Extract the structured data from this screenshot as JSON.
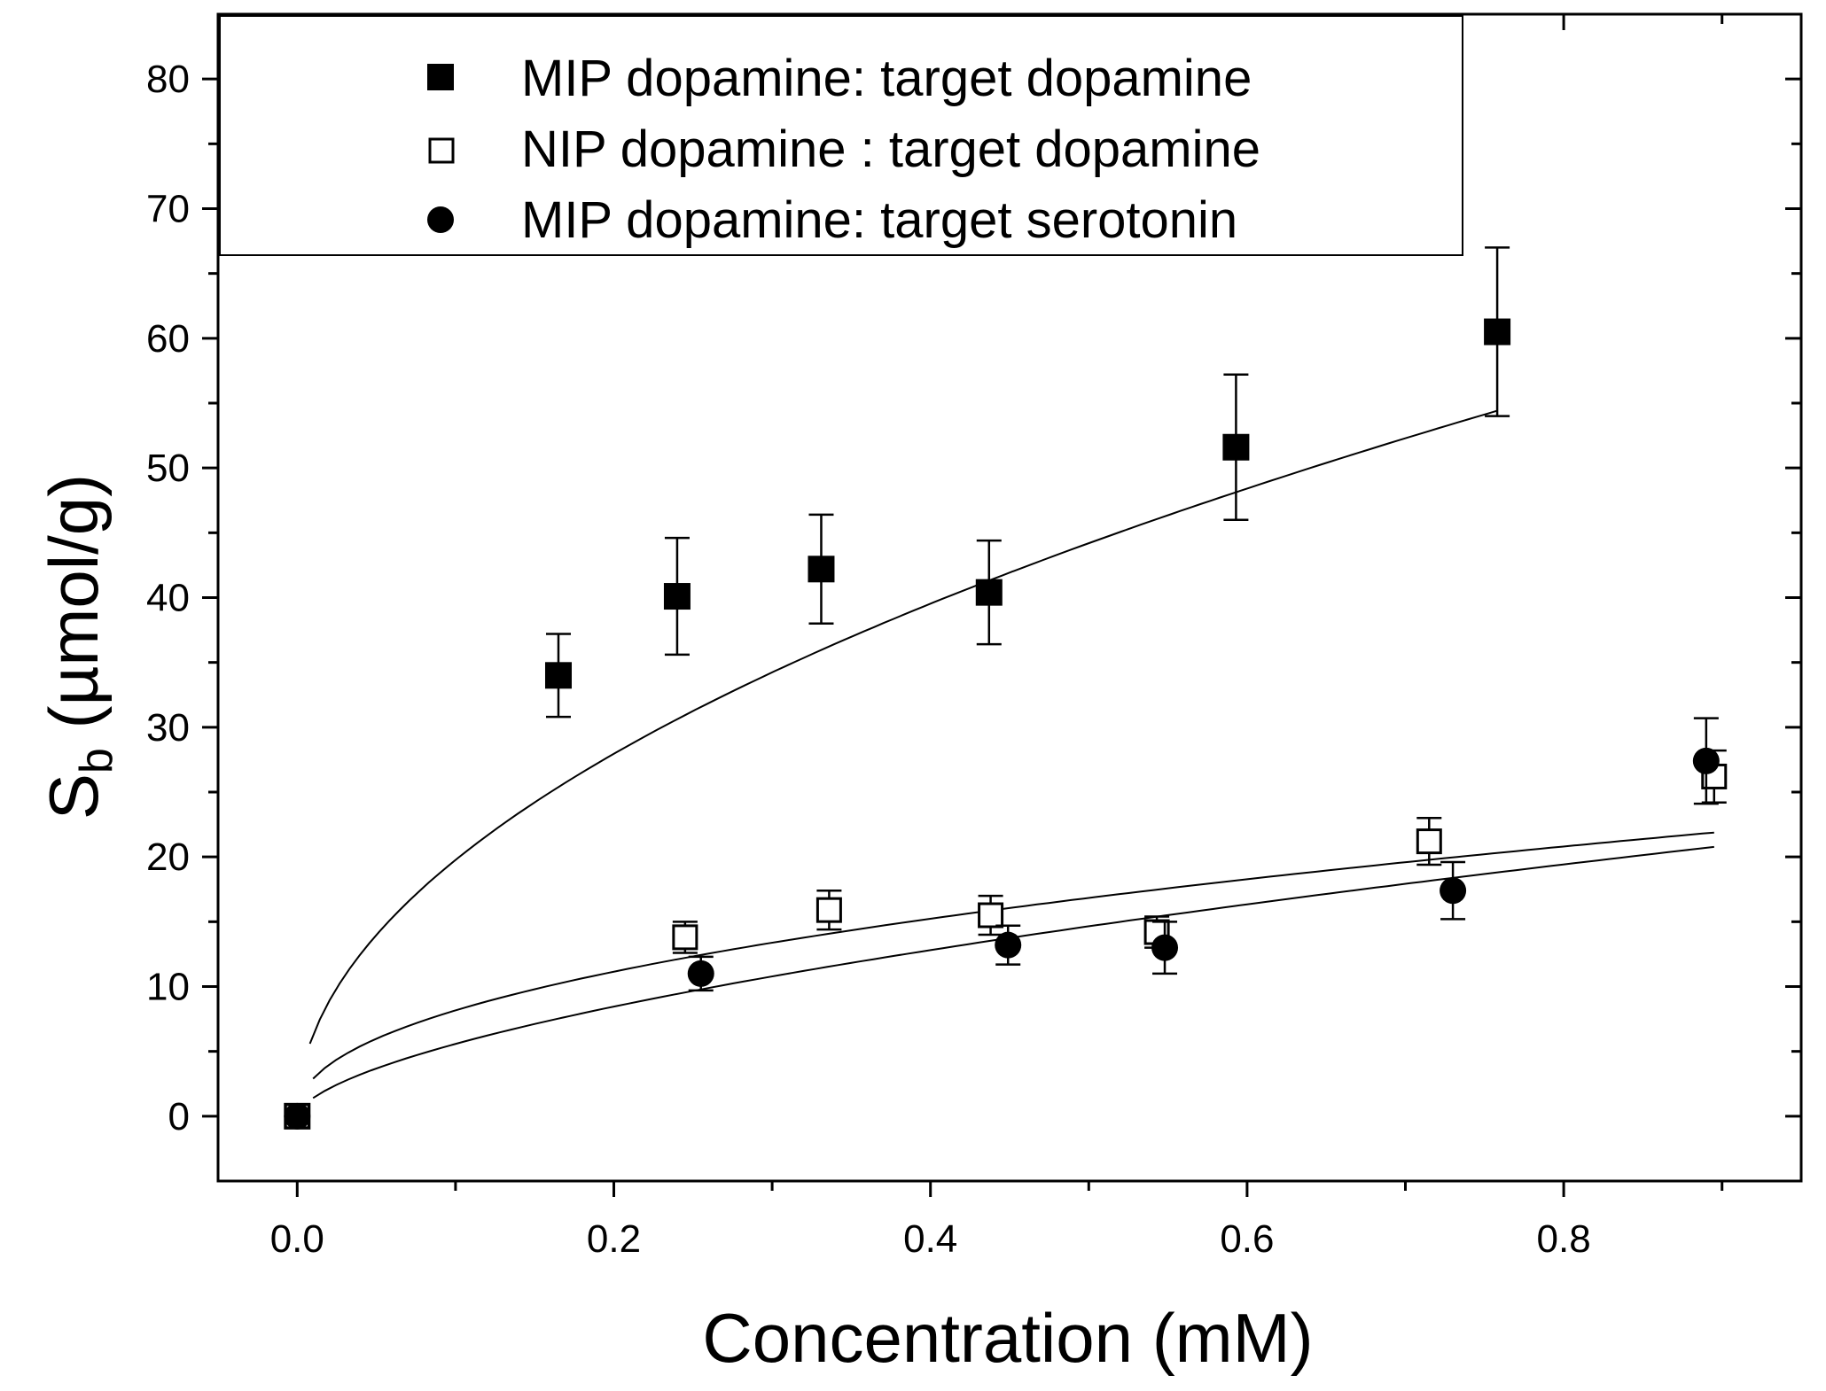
{
  "chart_data": {
    "type": "scatter",
    "title": "",
    "xlabel": "Concentration (mM)",
    "ylabel_main": "S",
    "ylabel_sub": "b",
    "ylabel_unit": " (µmol/g)",
    "xlim": [
      -0.05,
      0.95
    ],
    "ylim": [
      -5,
      85
    ],
    "x_ticks": [
      0.0,
      0.2,
      0.4,
      0.6,
      0.8
    ],
    "x_tick_labels": [
      "0.0",
      "0.2",
      "0.4",
      "0.6",
      "0.8"
    ],
    "x_minor_step": 0.1,
    "y_ticks": [
      0,
      10,
      20,
      30,
      40,
      50,
      60,
      70,
      80
    ],
    "y_tick_labels": [
      "0",
      "10",
      "20",
      "30",
      "40",
      "50",
      "60",
      "70",
      "80"
    ],
    "y_minor_step": 5,
    "grid": false,
    "legend_position": "top-left",
    "series": [
      {
        "name": "MIP dopamine: target dopamine",
        "marker": "filled-square",
        "x": [
          0.0,
          0.165,
          0.24,
          0.331,
          0.437,
          0.593,
          0.758
        ],
        "y": [
          0.0,
          34.0,
          40.1,
          42.2,
          40.4,
          51.6,
          60.5
        ],
        "err": [
          0.0,
          3.2,
          4.5,
          4.2,
          4.0,
          5.6,
          6.5
        ],
        "fit": {
          "a": 62.5,
          "b": 0.5,
          "x_start": 0.008,
          "x_end": 0.758
        }
      },
      {
        "name": "NIP dopamine : target dopamine",
        "marker": "open-square",
        "x": [
          0.0,
          0.245,
          0.336,
          0.438,
          0.543,
          0.715,
          0.895
        ],
        "y": [
          0.0,
          13.8,
          15.9,
          15.5,
          14.2,
          21.2,
          26.2
        ],
        "err": [
          0.0,
          1.2,
          1.5,
          1.5,
          1.2,
          1.8,
          2.0
        ],
        "fit": {
          "a": 23.0,
          "b": 0.45,
          "x_start": 0.01,
          "x_end": 0.895
        }
      },
      {
        "name": "MIP dopamine: target serotonin",
        "marker": "filled-circle",
        "x": [
          0.0,
          0.255,
          0.449,
          0.548,
          0.73,
          0.89
        ],
        "y": [
          0.0,
          11.0,
          13.2,
          13.0,
          17.4,
          27.4
        ],
        "err": [
          0.0,
          1.3,
          1.5,
          2.0,
          2.2,
          3.3
        ],
        "fit": {
          "a": 22.2,
          "b": 0.6,
          "x_start": 0.01,
          "x_end": 0.895
        }
      }
    ]
  }
}
